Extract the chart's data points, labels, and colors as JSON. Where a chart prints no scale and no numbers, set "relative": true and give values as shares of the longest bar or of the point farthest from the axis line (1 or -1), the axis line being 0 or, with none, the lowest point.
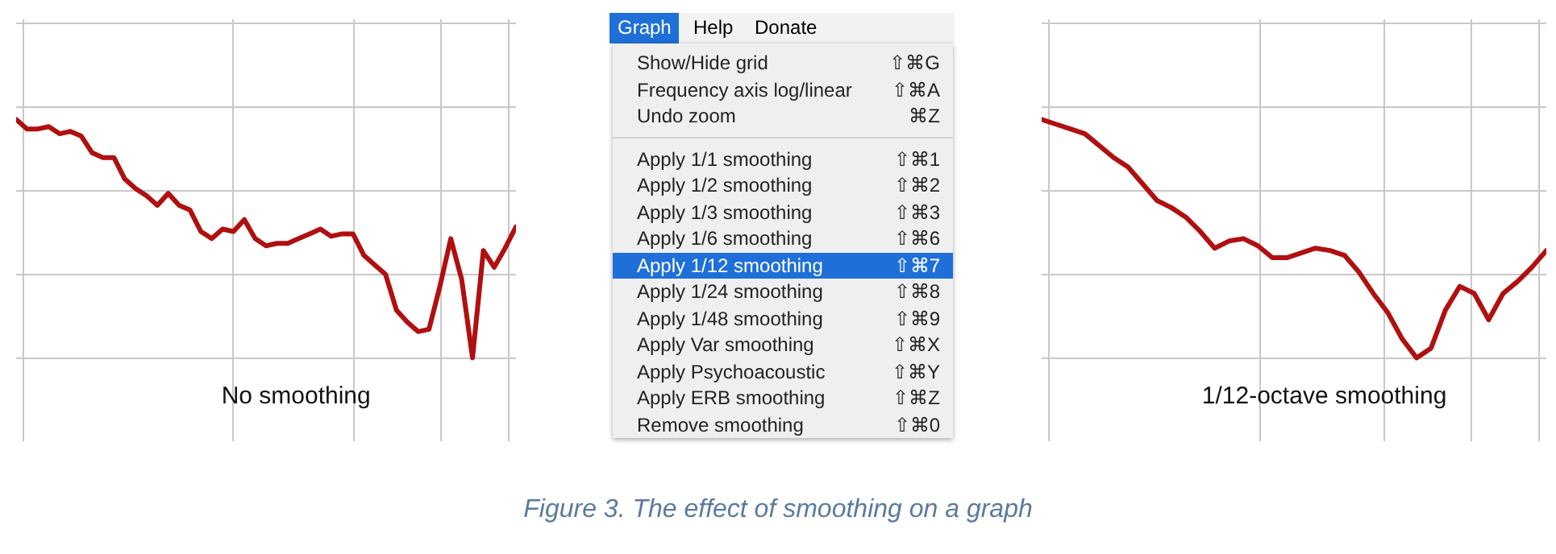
{
  "chart_data": [
    {
      "type": "line",
      "relative": true,
      "grid": true,
      "annotations": [
        "No smoothing"
      ],
      "categories": [
        null,
        null,
        null,
        null,
        null,
        null,
        null,
        null,
        null,
        null,
        null,
        null,
        null,
        null,
        null,
        null,
        null,
        null,
        null,
        null,
        null,
        null,
        null,
        null,
        null,
        null,
        null,
        null,
        null,
        null,
        null,
        null,
        null,
        null,
        null,
        null,
        null,
        null,
        null,
        null,
        null,
        null,
        null,
        null,
        null,
        null,
        null
      ],
      "series": [
        {
          "color": "#b01010",
          "values": [
            1.0,
            0.96,
            0.96,
            0.97,
            0.94,
            0.95,
            0.93,
            0.86,
            0.84,
            0.84,
            0.75,
            0.71,
            0.68,
            0.64,
            0.69,
            0.64,
            0.62,
            0.53,
            0.5,
            0.54,
            0.53,
            0.58,
            0.5,
            0.47,
            0.48,
            0.48,
            0.5,
            0.52,
            0.54,
            0.51,
            0.52,
            0.52,
            0.43,
            0.39,
            0.35,
            0.2,
            0.15,
            0.11,
            0.12,
            0.3,
            0.5,
            0.33,
            0.0,
            0.45,
            0.38,
            0.46,
            0.55
          ]
        }
      ]
    },
    {
      "type": "other",
      "title": "Figure 3. The effect of smoothing on a graph",
      "annotations": [
        "Graph",
        "Help",
        "Donate",
        "Show/Hide grid",
        "⇧⌘G",
        "Frequency axis log/linear",
        "⇧⌘A",
        "Undo zoom",
        "⌘Z",
        "Apply 1/1 smoothing",
        "⇧⌘1",
        "Apply 1/2 smoothing",
        "⇧⌘2",
        "Apply 1/3 smoothing",
        "⇧⌘3",
        "Apply 1/6 smoothing",
        "⇧⌘6",
        "Apply 1/12 smoothing",
        "⇧⌘7",
        "Apply 1/24 smoothing",
        "⇧⌘8",
        "Apply 1/48 smoothing",
        "⇧⌘9",
        "Apply Var smoothing",
        "⇧⌘X",
        "Apply Psychoacoustic",
        "⇧⌘Y",
        "Apply ERB smoothing",
        "⇧⌘Z",
        "Remove smoothing",
        "⇧⌘0"
      ]
    },
    {
      "type": "line",
      "relative": true,
      "grid": true,
      "annotations": [
        "1/12-octave smoothing"
      ],
      "categories": [
        null,
        null,
        null,
        null,
        null,
        null,
        null,
        null,
        null,
        null,
        null,
        null,
        null,
        null,
        null,
        null,
        null,
        null,
        null,
        null,
        null,
        null,
        null,
        null,
        null,
        null,
        null,
        null,
        null,
        null,
        null,
        null,
        null,
        null,
        null,
        null
      ],
      "series": [
        {
          "color": "#b01010",
          "values": [
            1.0,
            0.98,
            0.96,
            0.94,
            0.89,
            0.84,
            0.8,
            0.73,
            0.66,
            0.63,
            0.59,
            0.53,
            0.46,
            0.49,
            0.5,
            0.47,
            0.42,
            0.42,
            0.44,
            0.46,
            0.45,
            0.43,
            0.36,
            0.27,
            0.19,
            0.08,
            0.0,
            0.04,
            0.2,
            0.3,
            0.27,
            0.16,
            0.27,
            0.32,
            0.38,
            0.45
          ]
        }
      ]
    }
  ]
}
